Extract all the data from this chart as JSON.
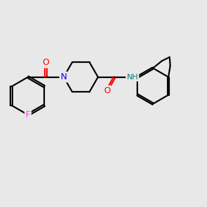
{
  "background_color": "#e8e8e8",
  "bond_color": "#000000",
  "atom_colors": {
    "O": "#ff0000",
    "N": "#0000ff",
    "F": "#ff44ff",
    "NH": "#008080",
    "C": "#000000"
  },
  "figsize": [
    3.0,
    3.0
  ],
  "dpi": 100
}
